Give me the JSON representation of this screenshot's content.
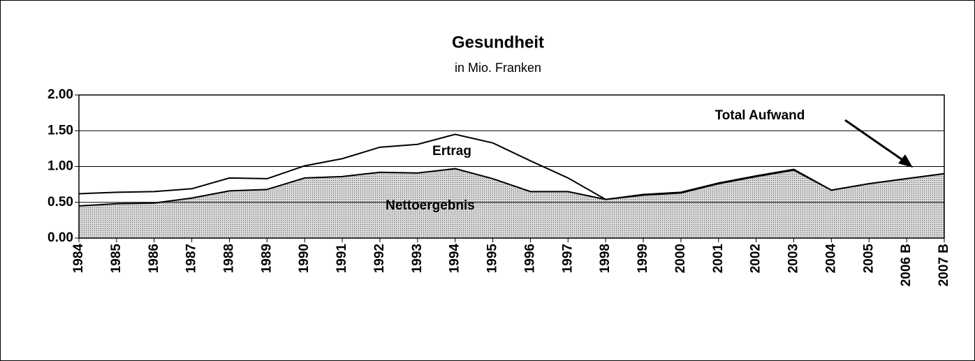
{
  "chart_data": {
    "type": "area",
    "title": "Gesundheit",
    "subtitle": "in Mio. Franken",
    "categories": [
      "1984",
      "1985",
      "1986",
      "1987",
      "1988",
      "1989",
      "1990",
      "1991",
      "1992",
      "1993",
      "1994",
      "1995",
      "1996",
      "1997",
      "1998",
      "1999",
      "2000",
      "2001",
      "2002",
      "2003",
      "2004",
      "2005",
      "2006 B",
      "2007 B"
    ],
    "series": [
      {
        "name": "Total Aufwand",
        "color": "#000000",
        "values": [
          0.62,
          0.64,
          0.65,
          0.69,
          0.84,
          0.83,
          1.01,
          1.11,
          1.27,
          1.31,
          1.45,
          1.33,
          1.08,
          0.84,
          0.54,
          0.61,
          0.64,
          0.77,
          0.87,
          0.96,
          0.67,
          0.76,
          0.83,
          0.9
        ]
      },
      {
        "name": "Nettoergebnis",
        "color": "#b8b8b8",
        "values": [
          0.45,
          0.48,
          0.49,
          0.56,
          0.66,
          0.68,
          0.84,
          0.86,
          0.92,
          0.91,
          0.97,
          0.83,
          0.65,
          0.65,
          0.54,
          0.6,
          0.63,
          0.76,
          0.86,
          0.95,
          0.67,
          0.76,
          0.83,
          0.9
        ]
      }
    ],
    "annotations": [
      "Ertrag"
    ],
    "ylim": [
      0,
      2
    ],
    "yticks": [
      {
        "value": 0,
        "label": "0.00"
      },
      {
        "value": 0.5,
        "label": "0.50"
      },
      {
        "value": 1,
        "label": "1.00"
      },
      {
        "value": 1.5,
        "label": "1.50"
      },
      {
        "value": 2,
        "label": "2.00"
      }
    ],
    "grid": true
  }
}
